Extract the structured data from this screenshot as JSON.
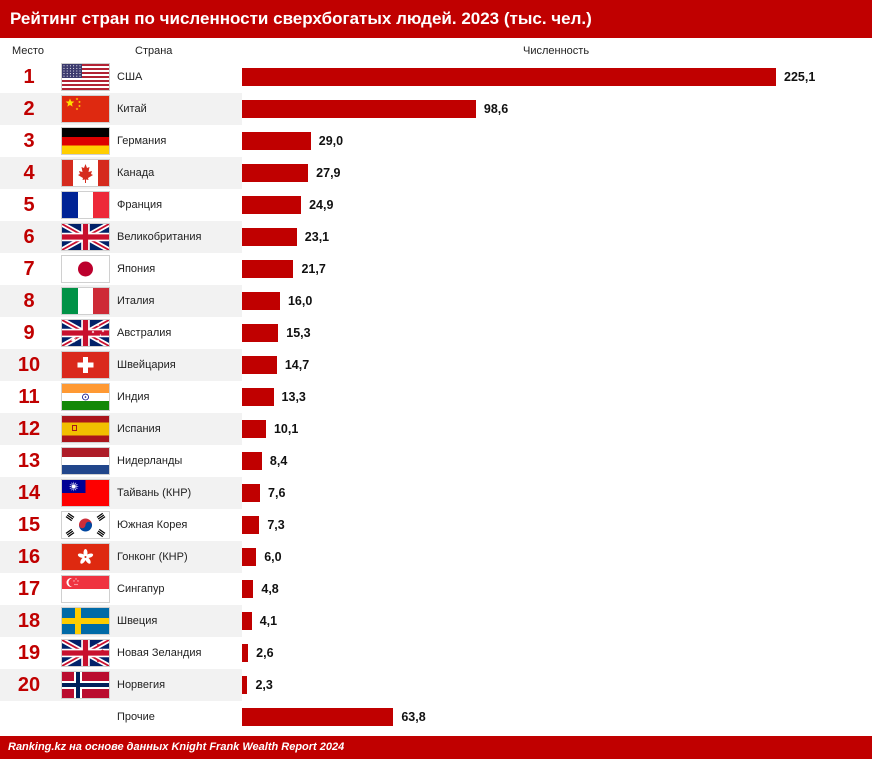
{
  "title": "Рейтинг стран по численности сверхбогатых людей. 2023 (тыс. чел.)",
  "columns": {
    "rank": "Место",
    "country": "Страна",
    "value": "Численность"
  },
  "footer": "Ranking.kz на основе данных Knight Frank Wealth Report 2024",
  "colors": {
    "accent": "#c00000",
    "row_alt": "#f2f2f2"
  },
  "chart_data": {
    "type": "bar",
    "orientation": "horizontal",
    "title": "Рейтинг стран по численности сверхбогатых людей. 2023 (тыс. чел.)",
    "xlabel": "Численность",
    "ylabel": "Страна",
    "categories": [
      "США",
      "Китай",
      "Германия",
      "Канада",
      "Франция",
      "Великобритания",
      "Япония",
      "Италия",
      "Австралия",
      "Швейцария",
      "Индия",
      "Испания",
      "Нидерланды",
      "Тайвань (КНР)",
      "Южная Корея",
      "Гонконг (КНР)",
      "Сингапур",
      "Швеция",
      "Новая Зеландия",
      "Норвегия",
      "Прочие"
    ],
    "values": [
      225.1,
      98.6,
      29.0,
      27.9,
      24.9,
      23.1,
      21.7,
      16.0,
      15.3,
      14.7,
      13.3,
      10.1,
      8.4,
      7.6,
      7.3,
      6.0,
      4.8,
      4.1,
      2.6,
      2.3,
      63.8
    ],
    "xlim": [
      0,
      225.1
    ],
    "grid": false,
    "legend": "none"
  },
  "rows": [
    {
      "rank": "1",
      "country": "США",
      "value_label": "225,1",
      "flag": "us-flag-icon"
    },
    {
      "rank": "2",
      "country": "Китай",
      "value_label": "98,6",
      "flag": "china-flag-icon"
    },
    {
      "rank": "3",
      "country": "Германия",
      "value_label": "29,0",
      "flag": "germany-flag-icon"
    },
    {
      "rank": "4",
      "country": "Канада",
      "value_label": "27,9",
      "flag": "canada-flag-icon"
    },
    {
      "rank": "5",
      "country": "Франция",
      "value_label": "24,9",
      "flag": "france-flag-icon"
    },
    {
      "rank": "6",
      "country": "Великобритания",
      "value_label": "23,1",
      "flag": "uk-flag-icon"
    },
    {
      "rank": "7",
      "country": "Япония",
      "value_label": "21,7",
      "flag": "japan-flag-icon"
    },
    {
      "rank": "8",
      "country": "Италия",
      "value_label": "16,0",
      "flag": "italy-flag-icon"
    },
    {
      "rank": "9",
      "country": "Австралия",
      "value_label": "15,3",
      "flag": "australia-flag-icon"
    },
    {
      "rank": "10",
      "country": "Швейцария",
      "value_label": "14,7",
      "flag": "switzerland-flag-icon"
    },
    {
      "rank": "11",
      "country": "Индия",
      "value_label": "13,3",
      "flag": "india-flag-icon"
    },
    {
      "rank": "12",
      "country": "Испания",
      "value_label": "10,1",
      "flag": "spain-flag-icon"
    },
    {
      "rank": "13",
      "country": "Нидерланды",
      "value_label": "8,4",
      "flag": "netherlands-flag-icon"
    },
    {
      "rank": "14",
      "country": "Тайвань (КНР)",
      "value_label": "7,6",
      "flag": "taiwan-flag-icon"
    },
    {
      "rank": "15",
      "country": "Южная Корея",
      "value_label": "7,3",
      "flag": "south-korea-flag-icon"
    },
    {
      "rank": "16",
      "country": "Гонконг (КНР)",
      "value_label": "6,0",
      "flag": "hong-kong-flag-icon"
    },
    {
      "rank": "17",
      "country": "Сингапур",
      "value_label": "4,8",
      "flag": "singapore-flag-icon"
    },
    {
      "rank": "18",
      "country": "Швеция",
      "value_label": "4,1",
      "flag": "sweden-flag-icon"
    },
    {
      "rank": "19",
      "country": "Новая Зеландия",
      "value_label": "2,6",
      "flag": "new-zealand-flag-icon"
    },
    {
      "rank": "20",
      "country": "Норвегия",
      "value_label": "2,3",
      "flag": "norway-flag-icon"
    },
    {
      "rank": "",
      "country": "Прочие",
      "value_label": "63,8",
      "flag": ""
    }
  ]
}
